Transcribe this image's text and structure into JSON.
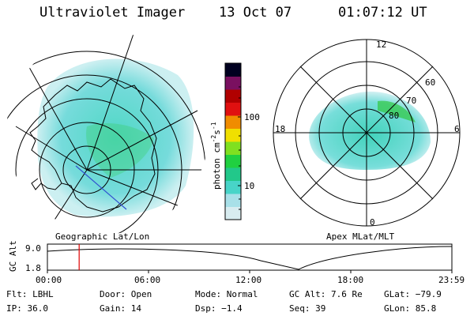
{
  "header": {
    "title": "Ultraviolet Imager",
    "date": "13 Oct 07",
    "time": "01:07:12 UT"
  },
  "left_panel": {
    "caption": "Geographic Lat/Lon"
  },
  "right_panel": {
    "caption": "Apex MLat/MLT",
    "mlt_labels": [
      "12",
      "18",
      "6",
      "0"
    ],
    "lat_labels": [
      "60",
      "70",
      "80"
    ]
  },
  "colorbar": {
    "unit": "photon cm",
    "unit_sup1": "-2",
    "unit_mid": "s",
    "unit_sup2": "-1",
    "ticks": [
      "100",
      "10"
    ],
    "colors": [
      "#d8ecf0",
      "#a8e0e8",
      "#48d4c8",
      "#22c88a",
      "#20d040",
      "#80e020",
      "#f0e000",
      "#f08c00",
      "#e01010",
      "#b00000",
      "#7a1060",
      "#000020"
    ]
  },
  "timeline": {
    "ylabel": "GC Alt",
    "yticks": [
      "9.0",
      "1.8"
    ],
    "xticks": [
      "00:00",
      "06:00",
      "12:00",
      "18:00",
      "23:59"
    ],
    "marker_fraction": 0.0785
  },
  "footer": {
    "filter": "Flt: LBHL",
    "door": "Door: Open",
    "mode": "Mode: Normal",
    "gc_alt": "GC Alt: 7.6 Re",
    "glat": "GLat: −79.9",
    "ip": "IP: 36.0",
    "gain": "Gain: 14",
    "dsp": "Dsp:   −1.4",
    "seq": "Seq: 39",
    "glon": "GLon: 85.8"
  }
}
